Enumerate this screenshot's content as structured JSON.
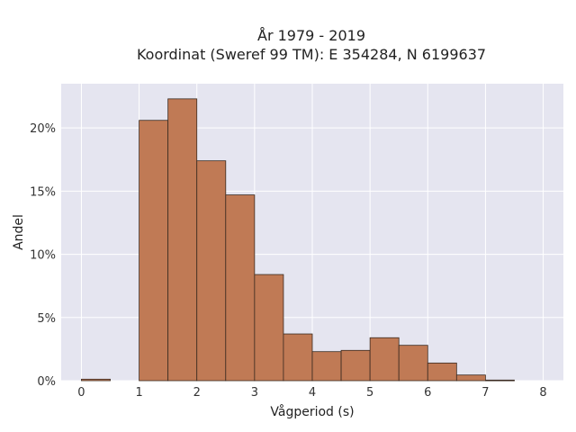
{
  "chart_data": {
    "type": "bar",
    "title_lines": [
      "År 1979 - 2019",
      "Koordinat (Sweref 99 TM): E 354284, N 6199637"
    ],
    "xlabel": "Vågperiod (s)",
    "ylabel": "Andel",
    "xlim": [
      -0.35,
      8.35
    ],
    "ylim": [
      0,
      0.235
    ],
    "xticks": [
      0,
      1,
      2,
      3,
      4,
      5,
      6,
      7,
      8
    ],
    "yticks": [
      0,
      0.05,
      0.1,
      0.15,
      0.2
    ],
    "ytick_labels": [
      "0%",
      "5%",
      "10%",
      "15%",
      "20%"
    ],
    "grid": true,
    "bar_color": "#c07a55",
    "bar_edge": "#3a2a20",
    "bins": [
      {
        "start": 0.0,
        "end": 0.5,
        "value": 0.0012
      },
      {
        "start": 1.0,
        "end": 1.5,
        "value": 0.206
      },
      {
        "start": 1.5,
        "end": 2.0,
        "value": 0.223
      },
      {
        "start": 2.0,
        "end": 2.5,
        "value": 0.174
      },
      {
        "start": 2.5,
        "end": 3.0,
        "value": 0.147
      },
      {
        "start": 3.0,
        "end": 3.5,
        "value": 0.084
      },
      {
        "start": 3.5,
        "end": 4.0,
        "value": 0.037
      },
      {
        "start": 4.0,
        "end": 4.5,
        "value": 0.023
      },
      {
        "start": 4.5,
        "end": 5.0,
        "value": 0.024
      },
      {
        "start": 5.0,
        "end": 5.5,
        "value": 0.034
      },
      {
        "start": 5.5,
        "end": 6.0,
        "value": 0.028
      },
      {
        "start": 6.0,
        "end": 6.5,
        "value": 0.014
      },
      {
        "start": 6.5,
        "end": 7.0,
        "value": 0.0045
      },
      {
        "start": 7.0,
        "end": 7.5,
        "value": 0.0005
      }
    ]
  }
}
